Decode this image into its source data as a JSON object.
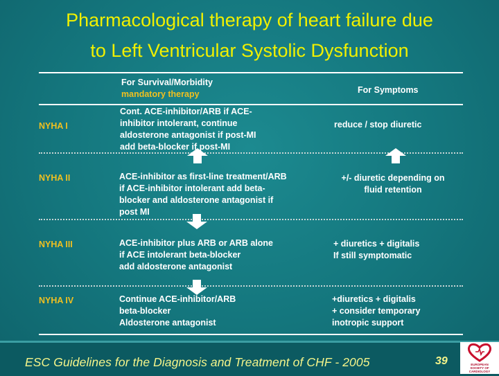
{
  "slide": {
    "title_line1": "Pharmacological therapy of heart failure due",
    "title_line2": "to Left Ventricular Systolic Dysfunction"
  },
  "table": {
    "header": {
      "survival_line1": "For Survival/Morbidity",
      "survival_line2": "mandatory therapy",
      "symptoms": "For Symptoms"
    },
    "rows": [
      {
        "label": "NYHA I",
        "survival": [
          "Cont. ACE-inhibitor/ARB if ACE-",
          "inhibitor intolerant, continue",
          "aldosterone antagonist if post-MI",
          "add beta-blocker if post-MI"
        ],
        "symptoms": [
          "reduce / stop diuretic"
        ]
      },
      {
        "label": "NYHA II",
        "survival": [
          "ACE-inhibitor as first-line treatment/ARB",
          "if ACE-inhibitor intolerant add beta-",
          "blocker and aldosterone antagonist if",
          "post MI"
        ],
        "symptoms": [
          "+/- diuretic depending on",
          "fluid retention"
        ]
      },
      {
        "label": "NYHA III",
        "survival": [
          "ACE-inhibitor plus ARB or ARB alone",
          "if ACE intolerant beta-blocker",
          "add aldosterone antagonist"
        ],
        "symptoms": [
          "+ diuretics + digitalis",
          "If still symptomatic"
        ]
      },
      {
        "label": "NYHA IV",
        "survival": [
          "Continue ACE-inhibitor/ARB",
          "beta-blocker",
          "Aldosterone antagonist"
        ],
        "symptoms": [
          "+diuretics + digitalis",
          "+ consider temporary",
          "inotropic support"
        ]
      }
    ]
  },
  "footer": {
    "title": "ESC Guidelines for the Diagnosis and Treatment of CHF - 2005",
    "page_number": "39",
    "logo_text_line1": "EUROPEAN",
    "logo_text_line2": "SOCIETY OF",
    "logo_text_line3": "CARDIOLOGY"
  },
  "colors": {
    "background": "#14767d",
    "title": "#f0f000",
    "accent": "#f0c020",
    "text": "#ffffff",
    "footer_text": "#f4f48a",
    "logo_red": "#c8102e"
  },
  "icons": [
    "arrow-up-icon",
    "arrow-down-icon",
    "esc-heart-logo"
  ]
}
